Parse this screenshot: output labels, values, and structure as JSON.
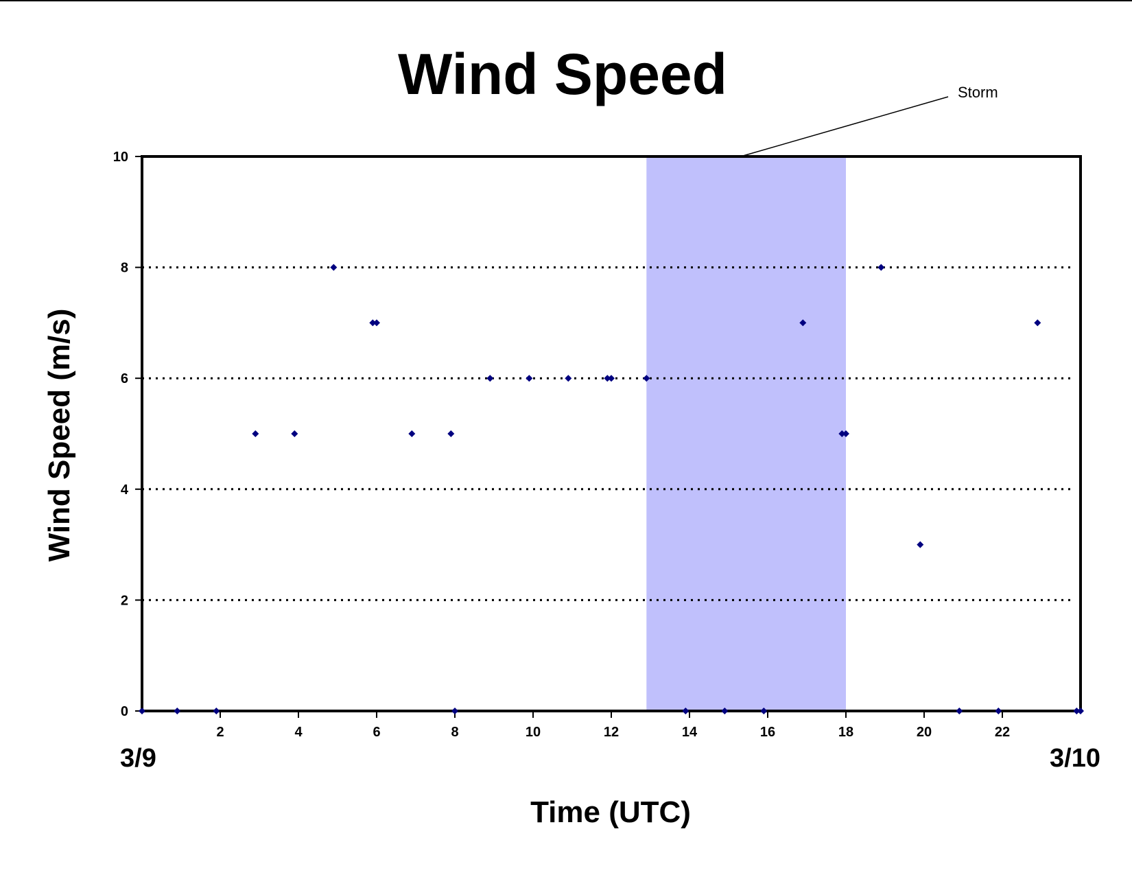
{
  "chart_data": {
    "type": "scatter",
    "title": "Wind Speed",
    "xlabel": "Time (UTC)",
    "ylabel": "Wind Speed (m/s)",
    "xlim": [
      0,
      24
    ],
    "ylim": [
      0,
      10
    ],
    "x_ticks": [
      2,
      4,
      6,
      8,
      10,
      12,
      14,
      16,
      18,
      20,
      22
    ],
    "y_ticks": [
      0,
      2,
      4,
      6,
      8,
      10
    ],
    "gridlines": [
      2,
      4,
      6,
      8
    ],
    "date_labels": {
      "start": "3/9",
      "end": "3/10"
    },
    "shaded_region": {
      "label": "Storm",
      "x_start": 12.9,
      "x_end": 18.0,
      "color": "#c0c0fc"
    },
    "marker_color": "#000080",
    "points": [
      {
        "x": 0.0,
        "y": 0
      },
      {
        "x": 0.9,
        "y": 0
      },
      {
        "x": 1.9,
        "y": 0
      },
      {
        "x": 2.9,
        "y": 5
      },
      {
        "x": 3.9,
        "y": 5
      },
      {
        "x": 4.9,
        "y": 8
      },
      {
        "x": 5.9,
        "y": 7
      },
      {
        "x": 6.0,
        "y": 7
      },
      {
        "x": 6.9,
        "y": 5
      },
      {
        "x": 7.9,
        "y": 5
      },
      {
        "x": 8.0,
        "y": 0
      },
      {
        "x": 8.9,
        "y": 6
      },
      {
        "x": 9.9,
        "y": 6
      },
      {
        "x": 10.9,
        "y": 6
      },
      {
        "x": 11.9,
        "y": 6
      },
      {
        "x": 12.0,
        "y": 6
      },
      {
        "x": 12.9,
        "y": 6
      },
      {
        "x": 13.9,
        "y": 0
      },
      {
        "x": 14.9,
        "y": 0
      },
      {
        "x": 15.9,
        "y": 0
      },
      {
        "x": 16.9,
        "y": 7
      },
      {
        "x": 17.9,
        "y": 5
      },
      {
        "x": 18.0,
        "y": 5
      },
      {
        "x": 18.9,
        "y": 8
      },
      {
        "x": 19.9,
        "y": 3
      },
      {
        "x": 20.9,
        "y": 0
      },
      {
        "x": 21.9,
        "y": 0
      },
      {
        "x": 22.9,
        "y": 7
      },
      {
        "x": 23.9,
        "y": 0
      },
      {
        "x": 24.0,
        "y": 0
      }
    ]
  }
}
